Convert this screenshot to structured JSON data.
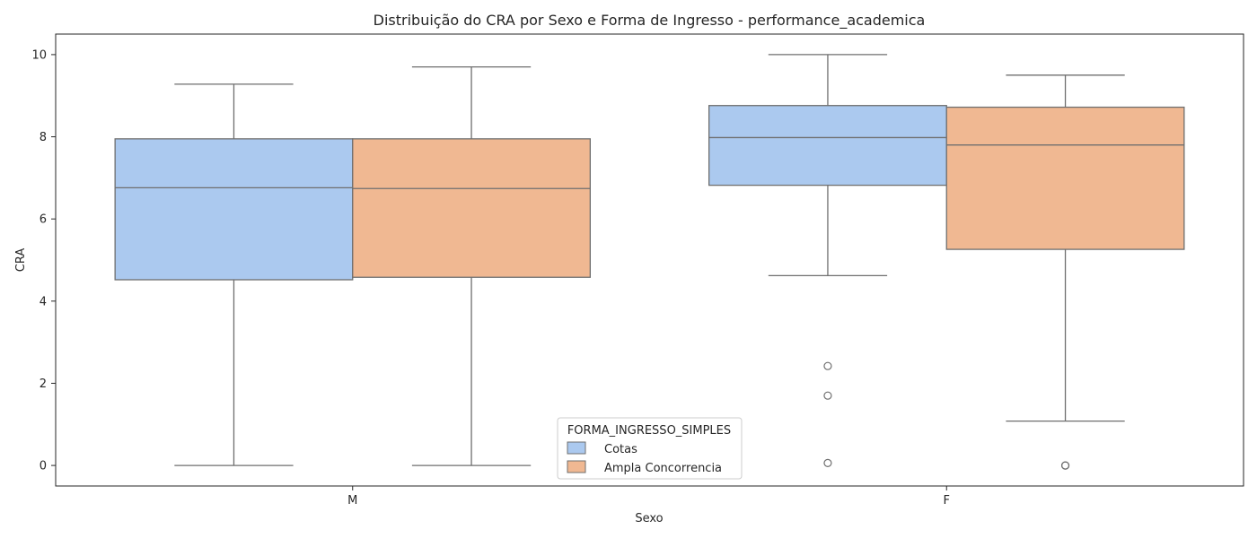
{
  "chart_data": {
    "type": "boxplot",
    "title": "Distribuição do CRA por Sexo e Forma de Ingresso - performance_academica",
    "xlabel": "Sexo",
    "ylabel": "CRA",
    "categories": [
      "M",
      "F"
    ],
    "ylim": [
      -0.5,
      10.5
    ],
    "yticks": [
      0,
      2,
      4,
      6,
      8,
      10
    ],
    "grid": false,
    "legend": {
      "title": "FORMA_INGRESSO_SIMPLES",
      "placement": "bottom-center"
    },
    "series": [
      {
        "name": "Cotas",
        "color": "#abc9ef",
        "boxes": [
          {
            "category": "M",
            "whisker_low": 0.0,
            "q1": 4.52,
            "median": 6.76,
            "q3": 7.95,
            "whisker_high": 9.28,
            "outliers": []
          },
          {
            "category": "F",
            "whisker_low": 4.62,
            "q1": 6.82,
            "median": 7.98,
            "q3": 8.76,
            "whisker_high": 10.0,
            "outliers": [
              2.42,
              1.7,
              0.06
            ]
          }
        ]
      },
      {
        "name": "Ampla Concorrencia",
        "color": "#f0b892",
        "boxes": [
          {
            "category": "M",
            "whisker_low": 0.0,
            "q1": 4.58,
            "median": 6.74,
            "q3": 7.95,
            "whisker_high": 9.7,
            "outliers": []
          },
          {
            "category": "F",
            "whisker_low": 1.08,
            "q1": 5.26,
            "median": 7.8,
            "q3": 8.72,
            "whisker_high": 9.5,
            "outliers": [
              0.0,
              0.0
            ]
          }
        ]
      }
    ],
    "colors": {
      "edge": "#6f6f6f",
      "axis": "#262626"
    }
  }
}
